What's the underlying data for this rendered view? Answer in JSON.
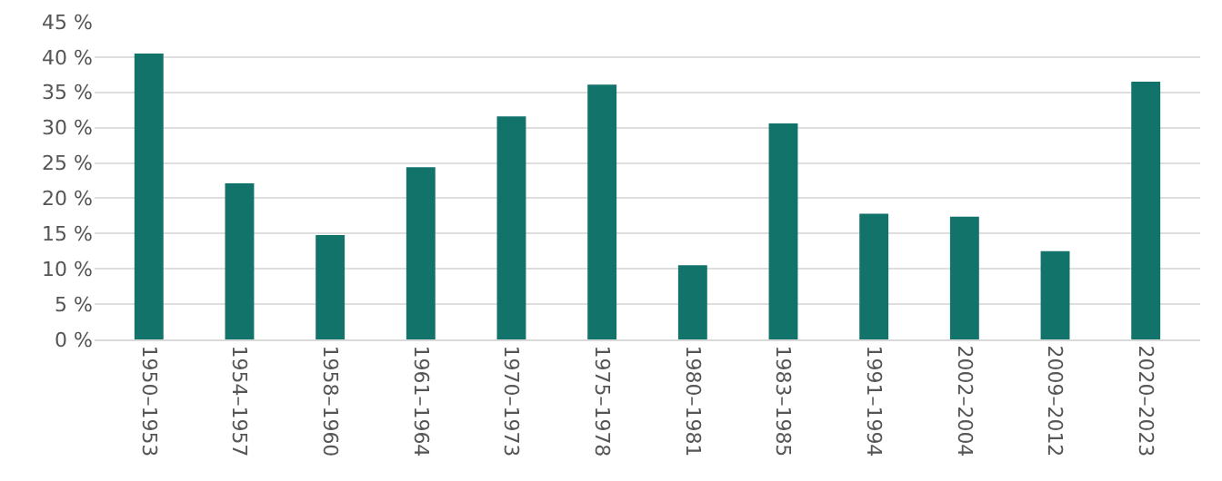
{
  "chart_data": {
    "type": "bar",
    "categories": [
      "1950–1953",
      "1954–1957",
      "1958–1960",
      "1961–1964",
      "1970–1973",
      "1975–1978",
      "1980–1981",
      "1983–1985",
      "1991–1994",
      "2002–2004",
      "2009–2012",
      "2020–2023"
    ],
    "values": [
      40.5,
      22.1,
      14.8,
      24.4,
      31.6,
      36.1,
      10.5,
      30.6,
      17.8,
      17.4,
      12.5,
      36.5
    ],
    "color": "#11736a",
    "ylim": [
      0,
      45
    ],
    "yticks": [
      {
        "value": 0,
        "label": "0 %"
      },
      {
        "value": 5,
        "label": "5 %"
      },
      {
        "value": 10,
        "label": "10 %"
      },
      {
        "value": 15,
        "label": "15 %"
      },
      {
        "value": 20,
        "label": "20 %"
      },
      {
        "value": 25,
        "label": "25 %"
      },
      {
        "value": 30,
        "label": "30 %"
      },
      {
        "value": 35,
        "label": "35 %"
      },
      {
        "value": 40,
        "label": "40 %"
      },
      {
        "value": 45,
        "label": "45 %"
      }
    ],
    "grid": "y"
  }
}
